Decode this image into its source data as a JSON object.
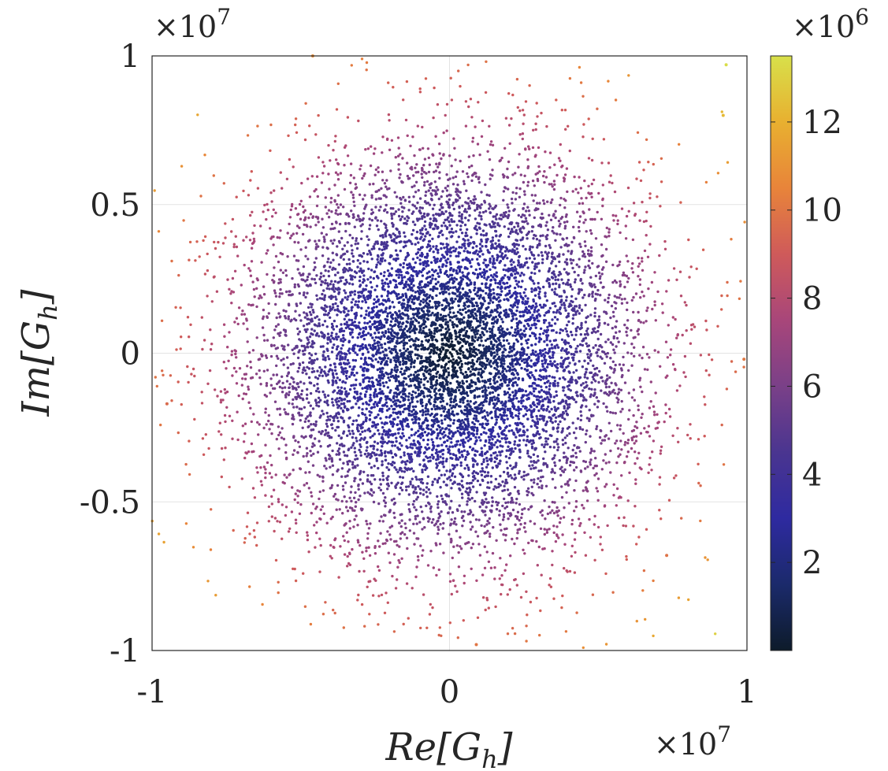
{
  "chart_data": {
    "type": "scatter",
    "title": "",
    "xlabel": {
      "main": "Re[G",
      "sub": "h",
      "close": "]"
    },
    "ylabel": {
      "main": "Im[G",
      "sub": "h",
      "close": "]"
    },
    "x_multiplier": {
      "base": "×10",
      "exp": "7"
    },
    "y_multiplier": {
      "base": "×10",
      "exp": "7"
    },
    "xlim": [
      -1,
      1
    ],
    "ylim": [
      -1,
      1
    ],
    "xticks": [
      -1,
      0,
      1
    ],
    "xtick_labels": [
      "-1",
      "0",
      "1"
    ],
    "yticks": [
      -1,
      -0.5,
      0,
      0.5,
      1
    ],
    "ytick_labels": [
      "-1",
      "-0.5",
      "0",
      "0.5",
      "1"
    ],
    "grid": true,
    "colorbar": {
      "multiplier": {
        "base": "×10",
        "exp": "6"
      },
      "range": [
        0,
        13.5
      ],
      "ticks": [
        2,
        4,
        6,
        8,
        10,
        12
      ],
      "tick_labels": [
        "2",
        "4",
        "6",
        "8",
        "10",
        "12"
      ],
      "colormap": [
        "#0d1b2a",
        "#1b2a6b",
        "#2e2aa0",
        "#4a3590",
        "#7a4088",
        "#a8467a",
        "#cf5a5a",
        "#e8843a",
        "#e8b030",
        "#d8e04a"
      ]
    },
    "series": [
      {
        "distribution": "2D Gaussian cloud of about 9000 points centered at (0, 0), spread std about 0.33 in axis units; color encodes |G_h|",
        "n_points": 9000,
        "center": [
          0,
          0
        ],
        "std": 0.33,
        "colored_by": "magnitude"
      }
    ],
    "outliers": [
      {
        "x": 0.93,
        "y": 0.97,
        "magnitude": 13.4
      },
      {
        "x": -0.46,
        "y": 1.0,
        "magnitude": 10.8
      },
      {
        "x": 0.92,
        "y": 0.8,
        "magnitude": 12.3
      },
      {
        "x": 0.99,
        "y": -0.02,
        "magnitude": 10.1
      },
      {
        "x": 0.73,
        "y": -0.68,
        "magnitude": 9.9
      },
      {
        "x": 0.09,
        "y": -0.98,
        "magnitude": 10.0
      },
      {
        "x": -0.95,
        "y": -0.17,
        "magnitude": 9.6
      }
    ]
  }
}
